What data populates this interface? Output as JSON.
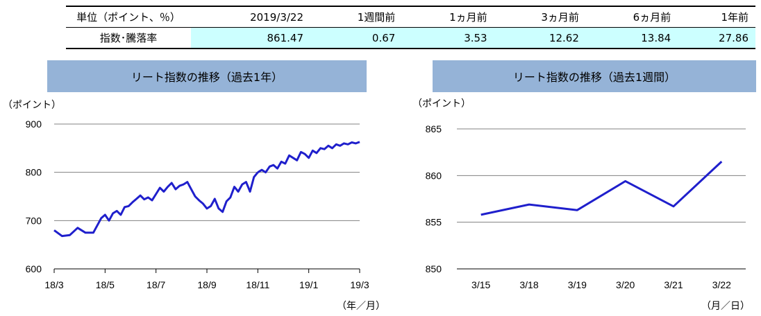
{
  "table": {
    "headers": [
      "単位（ポイント、％）",
      "2019/3/22",
      "1週間前",
      "1ヵ月前",
      "3ヵ月前",
      "6ヵ月前",
      "1年前"
    ],
    "row_label": "指数･騰落率",
    "values": [
      "861.47",
      "0.67",
      "3.53",
      "12.62",
      "13.84",
      "27.86"
    ]
  },
  "chart_data": [
    {
      "type": "line",
      "title": "リート指数の推移（過去1年）",
      "ylabel": "（ポイント）",
      "xlabel": "（年／月）",
      "ylim": [
        600,
        900
      ],
      "yticks": [
        "600",
        "700",
        "800",
        "900"
      ],
      "categories": [
        "18/3",
        "18/5",
        "18/7",
        "18/9",
        "18/11",
        "19/1",
        "19/3"
      ],
      "grid": true,
      "color": "#1f1fcc",
      "x": [
        0,
        2,
        4,
        6,
        8,
        10,
        11,
        12,
        13,
        14,
        15,
        16,
        17,
        18,
        19,
        20,
        21,
        22,
        23,
        24,
        25,
        26,
        27,
        28,
        29,
        30,
        31,
        32,
        33,
        34,
        35,
        36,
        37,
        38,
        39,
        40,
        41,
        42,
        43,
        44,
        45,
        46,
        47,
        48,
        49,
        50,
        51,
        52
      ],
      "values": [
        680,
        668,
        670,
        685,
        675,
        675,
        690,
        705,
        712,
        700,
        715,
        720,
        712,
        728,
        730,
        738,
        745,
        752,
        744,
        748,
        742,
        755,
        768,
        760,
        770,
        778,
        765,
        772,
        775,
        780,
        765,
        750,
        742,
        735,
        725,
        730,
        745,
        725,
        718,
        740,
        748,
        770,
        760,
        775,
        780,
        760,
        790,
        800
      ],
      "x2": [
        52,
        53,
        54,
        55,
        56,
        57,
        58,
        59,
        60,
        61,
        62,
        63,
        64,
        65,
        66,
        67,
        68,
        69,
        70,
        71,
        72,
        73,
        74,
        75,
        76,
        77,
        78
      ],
      "values2": [
        800,
        805,
        800,
        812,
        815,
        808,
        822,
        818,
        835,
        830,
        825,
        842,
        838,
        830,
        845,
        840,
        850,
        848,
        855,
        850,
        858,
        855,
        860,
        858,
        862,
        860,
        863
      ]
    },
    {
      "type": "line",
      "title": "リート指数の推移（過去1週間）",
      "ylabel": "（ポイント）",
      "xlabel": "（月／日）",
      "ylim": [
        850,
        865
      ],
      "yticks": [
        "850",
        "855",
        "860",
        "865"
      ],
      "categories": [
        "3/15",
        "3/18",
        "3/19",
        "3/20",
        "3/21",
        "3/22"
      ],
      "values": [
        855.8,
        856.9,
        856.3,
        859.4,
        856.7,
        861.5
      ],
      "grid": true,
      "color": "#1f1fcc"
    }
  ]
}
